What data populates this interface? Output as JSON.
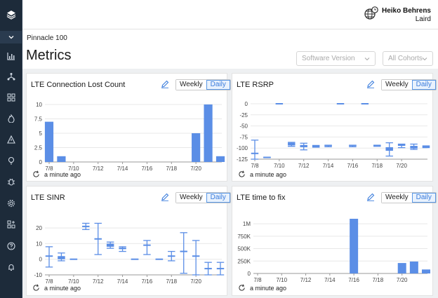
{
  "sidebar": {
    "items": [
      "chart-bar-icon",
      "network-icon",
      "grid-icon",
      "flame-icon",
      "warning-icon",
      "lightbulb-icon",
      "bug-icon",
      "gear-icon",
      "puzzle-icon",
      "help-icon",
      "bell-icon"
    ]
  },
  "header": {
    "user_name": "Heiko Behrens",
    "org": "Laird"
  },
  "page": {
    "breadcrumb": "Pinnacle 100",
    "title": "Metrics",
    "filters": {
      "software_version": "Software Version",
      "cohorts": "All Cohorts"
    }
  },
  "colors": {
    "accent": "#5b8ee6",
    "sidebar": "#1d2b3a"
  },
  "cards": [
    {
      "title": "LTE Connection Lost Count",
      "weekly": "Weekly",
      "daily": "Daily",
      "updated": "a minute ago"
    },
    {
      "title": "LTE RSRP",
      "weekly": "Weekly",
      "daily": "Daily",
      "updated": "a minute ago"
    },
    {
      "title": "LTE SINR",
      "weekly": "Weekly",
      "daily": "Daily",
      "updated": "a minute ago"
    },
    {
      "title": "LTE time to fix",
      "weekly": "Weekly",
      "daily": "Daily",
      "updated": "a minute ago"
    }
  ],
  "chart_data": [
    {
      "type": "bar",
      "title": "LTE Connection Lost Count",
      "x_ticks": [
        "7/8",
        "7/10",
        "7/12",
        "7/14",
        "7/16",
        "7/18",
        "7/20"
      ],
      "y_ticks": [
        "0",
        "2.5",
        "5",
        "7.5",
        "10"
      ],
      "ylim": [
        0,
        10
      ],
      "x": [
        0,
        1,
        12,
        13,
        14
      ],
      "values": [
        7,
        1,
        5,
        10,
        1
      ],
      "grid": true
    },
    {
      "type": "boxplot",
      "title": "LTE RSRP",
      "x_ticks": [
        "7/8",
        "7/10",
        "7/12",
        "7/14",
        "7/16",
        "7/18",
        "7/20"
      ],
      "y_ticks": [
        "0",
        "-25",
        "-50",
        "-75",
        "-100",
        "-125"
      ],
      "ylim": [
        -125,
        0
      ],
      "x": [
        0,
        1,
        2,
        3,
        4,
        5,
        6,
        7,
        8,
        9,
        10,
        11,
        12,
        13,
        14
      ],
      "q1": [
        -112,
        -121,
        0,
        -94,
        -98,
        -98,
        -97,
        0,
        -97,
        0,
        -96,
        -106,
        -95,
        -101,
        -99
      ],
      "q3": [
        -112,
        -121,
        0,
        -88,
        -93,
        -94,
        -94,
        0,
        -94,
        0,
        -94,
        -98,
        -91,
        -95,
        -95
      ],
      "whisker_low": [
        -125,
        -121,
        0,
        -96,
        -104,
        -98,
        -97,
        0,
        -97,
        0,
        -96,
        -118,
        -99,
        -103,
        -99
      ],
      "whisker_high": [
        -82,
        -121,
        0,
        -87,
        -89,
        -94,
        -94,
        0,
        -94,
        0,
        -94,
        -88,
        -91,
        -91,
        -95
      ],
      "grid": true
    },
    {
      "type": "boxplot",
      "title": "LTE SINR",
      "x_ticks": [
        "7/8",
        "7/10",
        "7/12",
        "7/14",
        "7/16",
        "7/18",
        "7/20"
      ],
      "y_ticks": [
        "-10",
        "0",
        "10",
        "20"
      ],
      "ylim": [
        -10,
        25
      ],
      "x": [
        0,
        1,
        2,
        3,
        4,
        5,
        6,
        7,
        8,
        9,
        10,
        11,
        12,
        13,
        14
      ],
      "q1": [
        2,
        0,
        0,
        21,
        13,
        8,
        6,
        0,
        9,
        0,
        2,
        5,
        2,
        -6,
        -6
      ],
      "q3": [
        2,
        2,
        0,
        21,
        13,
        10,
        7,
        0,
        9,
        0,
        2,
        5,
        2,
        -6,
        -6
      ],
      "whisker_low": [
        -5,
        -1,
        0,
        19,
        3,
        7,
        5,
        0,
        3,
        0,
        -1,
        -9,
        -10,
        -10,
        -10
      ],
      "whisker_high": [
        8,
        4,
        0,
        23,
        23,
        11,
        8,
        0,
        12,
        0,
        5,
        17,
        12,
        -2,
        -2
      ],
      "grid": true
    },
    {
      "type": "bar",
      "title": "LTE time to fix",
      "x_ticks": [
        "7/8",
        "7/10",
        "7/12",
        "7/14",
        "7/16",
        "7/18",
        "7/20"
      ],
      "y_ticks": [
        "0",
        "250K",
        "500K",
        "750K",
        "1M"
      ],
      "ylim": [
        0,
        1100000
      ],
      "x": [
        8,
        12,
        13,
        14
      ],
      "values": [
        1100000,
        210000,
        240000,
        80000
      ],
      "grid": true
    }
  ]
}
